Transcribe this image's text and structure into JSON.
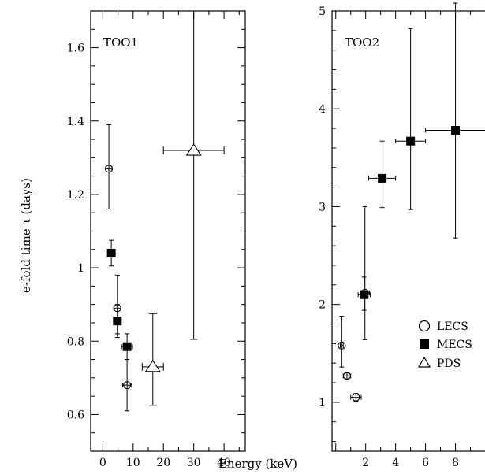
{
  "shared": {
    "ylabel": "e-fold time τ (days)",
    "xlabel": "Energy (keV)",
    "legend": {
      "placement": "lower-right of right panel",
      "entries": [
        {
          "label": "LECS",
          "marker": "circle"
        },
        {
          "label": "MECS",
          "marker": "square"
        },
        {
          "label": "PDS",
          "marker": "triangle"
        }
      ]
    }
  },
  "chart_data": [
    {
      "type": "scatter",
      "title": "TOO1",
      "xlim": [
        -4,
        47
      ],
      "ylim": [
        0.5,
        1.7
      ],
      "xticks": [
        "0",
        "10",
        "20",
        "30",
        "40"
      ],
      "yticks": [
        "0.6",
        "0.8",
        "1",
        "1.2",
        "1.4",
        "1.6"
      ],
      "series": [
        {
          "name": "LECS",
          "marker": "circle",
          "points": [
            {
              "x": 2.0,
              "xerr": [
                1.0,
                1.0
              ],
              "y": 1.27,
              "yerr": [
                0.11,
                0.12
              ]
            },
            {
              "x": 4.8,
              "xerr": [
                1.2,
                1.2
              ],
              "y": 0.89,
              "yerr": [
                0.07,
                0.09
              ]
            },
            {
              "x": 8.0,
              "xerr": [
                1.5,
                1.5
              ],
              "y": 0.68,
              "yerr": [
                0.07,
                0.07
              ]
            }
          ]
        },
        {
          "name": "MECS",
          "marker": "square",
          "points": [
            {
              "x": 2.8,
              "xerr": [
                0.8,
                0.8
              ],
              "y": 1.04,
              "yerr": [
                0.035,
                0.035
              ]
            },
            {
              "x": 4.8,
              "xerr": [
                1.2,
                1.2
              ],
              "y": 0.855,
              "yerr": [
                0.045,
                0.045
              ]
            },
            {
              "x": 8.0,
              "xerr": [
                1.8,
                1.8
              ],
              "y": 0.785,
              "yerr": [
                0.035,
                0.035
              ]
            }
          ]
        },
        {
          "name": "PDS",
          "marker": "triangle",
          "points": [
            {
              "x": 16.5,
              "xerr": [
                3.5,
                3.5
              ],
              "y": 0.73,
              "yerr": [
                0.105,
                0.145
              ]
            },
            {
              "x": 30.0,
              "xerr": [
                10.0,
                10.0
              ],
              "y": 1.32,
              "yerr": [
                0.515,
                0.38
              ]
            }
          ]
        }
      ]
    },
    {
      "type": "scatter",
      "title": "TOO2",
      "xlim": [
        -0.25,
        10.5
      ],
      "ylim": [
        0.5,
        5.0
      ],
      "xticks": [
        "2",
        "4",
        "6",
        "8"
      ],
      "yticks": [
        "1",
        "2",
        "3",
        "4",
        "5"
      ],
      "series": [
        {
          "name": "LECS",
          "marker": "circle",
          "points": [
            {
              "x": 0.4,
              "xerr": [
                0.1,
                0.1
              ],
              "y": 1.58,
              "yerr": [
                0.22,
                0.3
              ]
            },
            {
              "x": 0.75,
              "xerr": [
                0.25,
                0.25
              ],
              "y": 1.27,
              "yerr": [
                0.03,
                0.03
              ]
            },
            {
              "x": 1.35,
              "xerr": [
                0.35,
                0.35
              ],
              "y": 1.05,
              "yerr": [
                0.04,
                0.04
              ]
            },
            {
              "x": 1.95,
              "xerr": [
                0.3,
                0.3
              ],
              "y": 2.12,
              "yerr": [
                0.48,
                0.88
              ]
            }
          ]
        },
        {
          "name": "MECS",
          "marker": "square",
          "points": [
            {
              "x": 1.9,
              "xerr": [
                0.4,
                0.4
              ],
              "y": 2.1,
              "yerr": [
                0.16,
                0.18
              ]
            },
            {
              "x": 3.1,
              "xerr": [
                0.9,
                0.9
              ],
              "y": 3.29,
              "yerr": [
                0.3,
                0.38
              ]
            },
            {
              "x": 5.0,
              "xerr": [
                1.0,
                1.0
              ],
              "y": 3.67,
              "yerr": [
                0.7,
                1.15
              ]
            },
            {
              "x": 8.0,
              "xerr": [
                2.0,
                2.0
              ],
              "y": 3.78,
              "yerr": [
                1.1,
                1.3
              ]
            }
          ]
        }
      ]
    }
  ]
}
